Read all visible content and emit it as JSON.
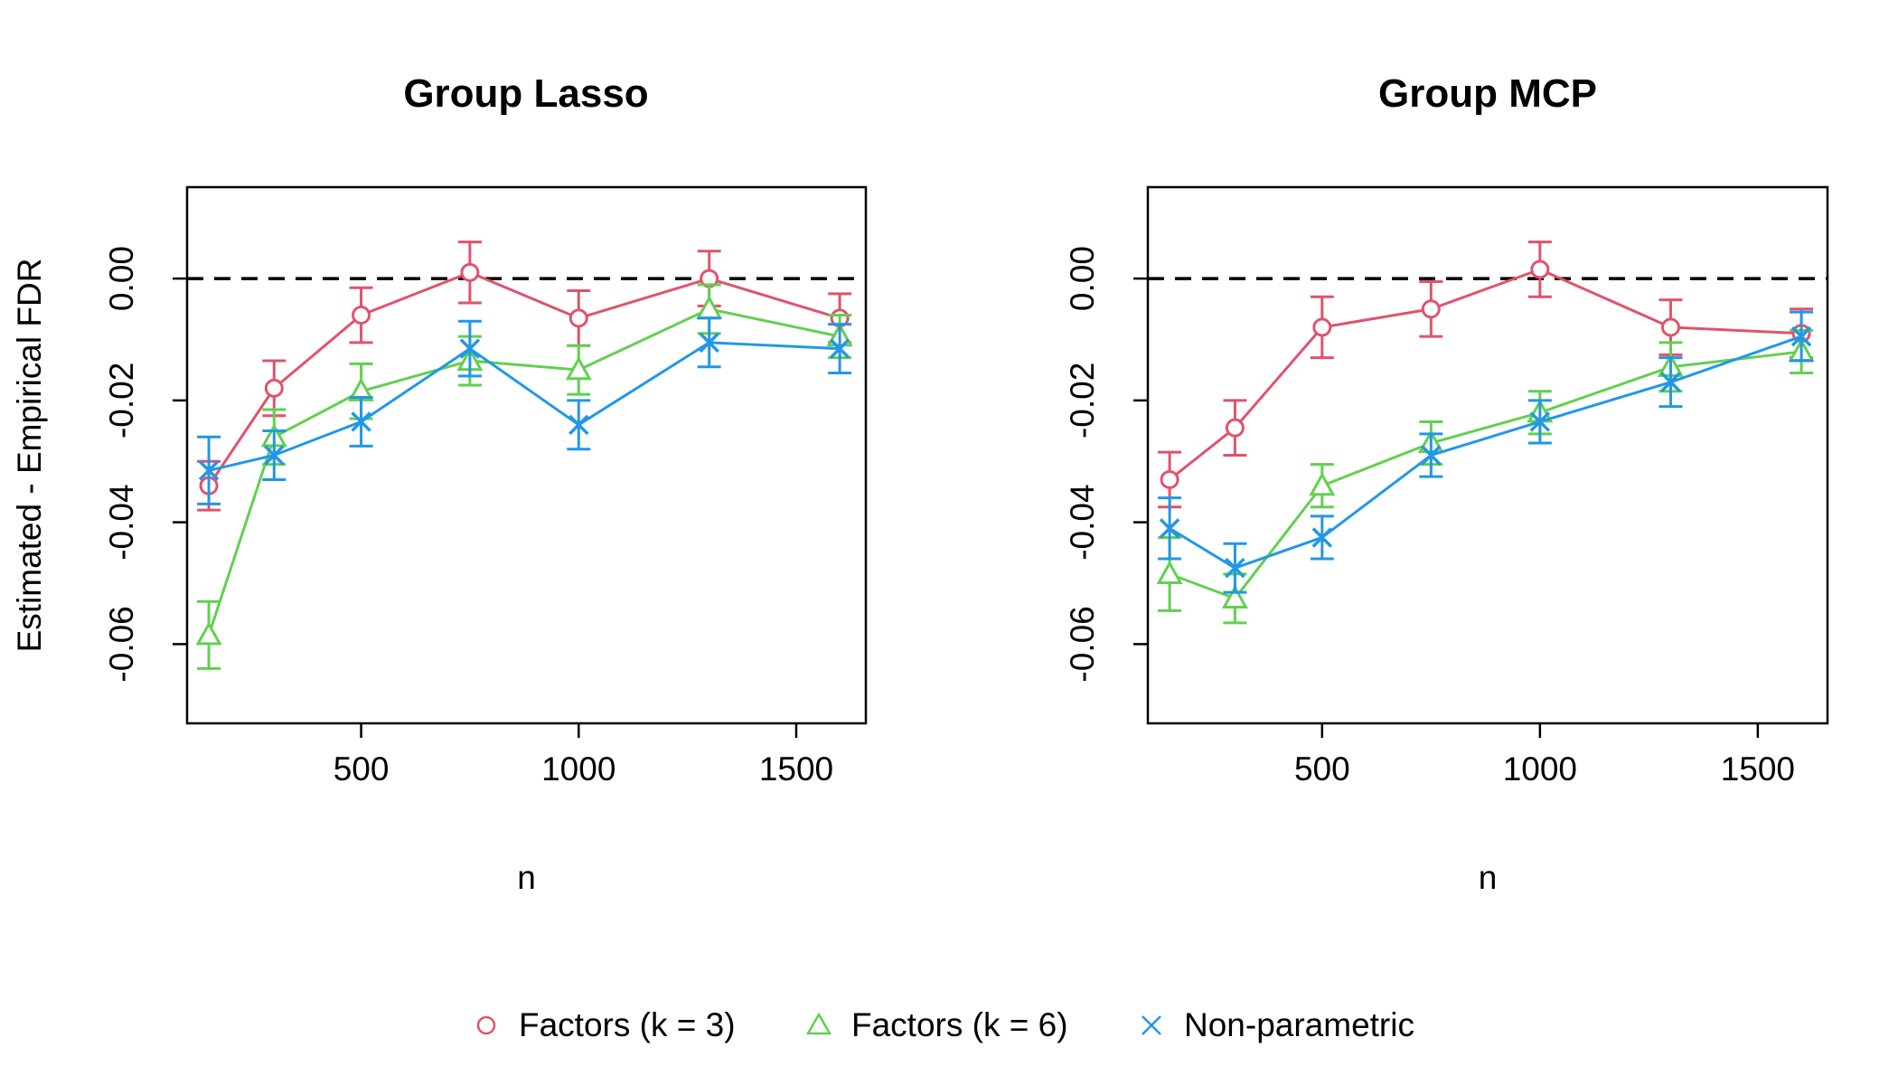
{
  "chart_data": [
    {
      "type": "line",
      "title": "Group Lasso",
      "xlabel": "n",
      "ylabel": "Estimated - Empirical FDR",
      "xlim": [
        100,
        1660
      ],
      "ylim": [
        -0.073,
        0.015
      ],
      "xticks": [
        500,
        1000,
        1500
      ],
      "yticks": [
        0.0,
        -0.02,
        -0.04,
        -0.06
      ],
      "reference_line": 0,
      "x": [
        150,
        300,
        500,
        750,
        1000,
        1300,
        1600
      ],
      "series": [
        {
          "name": "Factors (k = 3)",
          "color": "#DF536B",
          "marker": "circle",
          "values": [
            -0.034,
            -0.018,
            -0.006,
            0.001,
            -0.0065,
            0.0,
            -0.0065
          ],
          "err": [
            0.004,
            0.0045,
            0.0045,
            0.005,
            0.0045,
            0.0045,
            0.004
          ]
        },
        {
          "name": "Factors (k = 6)",
          "color": "#61D04F",
          "marker": "triangle",
          "values": [
            -0.0585,
            -0.026,
            -0.0185,
            -0.0135,
            -0.015,
            -0.005,
            -0.0095
          ],
          "err": [
            0.0055,
            0.0045,
            0.0045,
            0.004,
            0.004,
            0.004,
            0.0035
          ]
        },
        {
          "name": "Non-parametric",
          "color": "#2297E6",
          "marker": "x",
          "values": [
            -0.0315,
            -0.029,
            -0.0235,
            -0.0115,
            -0.024,
            -0.0105,
            -0.0115
          ],
          "err": [
            0.0055,
            0.004,
            0.004,
            0.0045,
            0.004,
            0.004,
            0.004
          ]
        }
      ]
    },
    {
      "type": "line",
      "title": "Group MCP",
      "xlabel": "n",
      "ylabel": "",
      "xlim": [
        100,
        1660
      ],
      "ylim": [
        -0.073,
        0.015
      ],
      "xticks": [
        500,
        1000,
        1500
      ],
      "yticks": [
        0.0,
        -0.02,
        -0.04,
        -0.06
      ],
      "reference_line": 0,
      "x": [
        150,
        300,
        500,
        750,
        1000,
        1300,
        1600
      ],
      "series": [
        {
          "name": "Factors (k = 3)",
          "color": "#DF536B",
          "marker": "circle",
          "values": [
            -0.033,
            -0.0245,
            -0.008,
            -0.005,
            0.0015,
            -0.008,
            -0.009
          ],
          "err": [
            0.0045,
            0.0045,
            0.005,
            0.0045,
            0.0045,
            0.0045,
            0.004
          ]
        },
        {
          "name": "Factors (k = 6)",
          "color": "#61D04F",
          "marker": "triangle",
          "values": [
            -0.0485,
            -0.0525,
            -0.034,
            -0.027,
            -0.022,
            -0.0145,
            -0.012
          ],
          "err": [
            0.006,
            0.004,
            0.0035,
            0.0035,
            0.0035,
            0.004,
            0.0035
          ]
        },
        {
          "name": "Non-parametric",
          "color": "#2297E6",
          "marker": "x",
          "values": [
            -0.041,
            -0.0475,
            -0.0425,
            -0.029,
            -0.0235,
            -0.017,
            -0.0095
          ],
          "err": [
            0.005,
            0.004,
            0.0035,
            0.0035,
            0.0035,
            0.004,
            0.004
          ]
        }
      ]
    }
  ],
  "legend": {
    "placement": "bottom-center",
    "items": [
      {
        "label": "Factors (k = 3)",
        "color": "#DF536B",
        "marker": "circle"
      },
      {
        "label": "Factors (k = 6)",
        "color": "#61D04F",
        "marker": "triangle"
      },
      {
        "label": "Non-parametric",
        "color": "#2297E6",
        "marker": "x"
      }
    ]
  }
}
